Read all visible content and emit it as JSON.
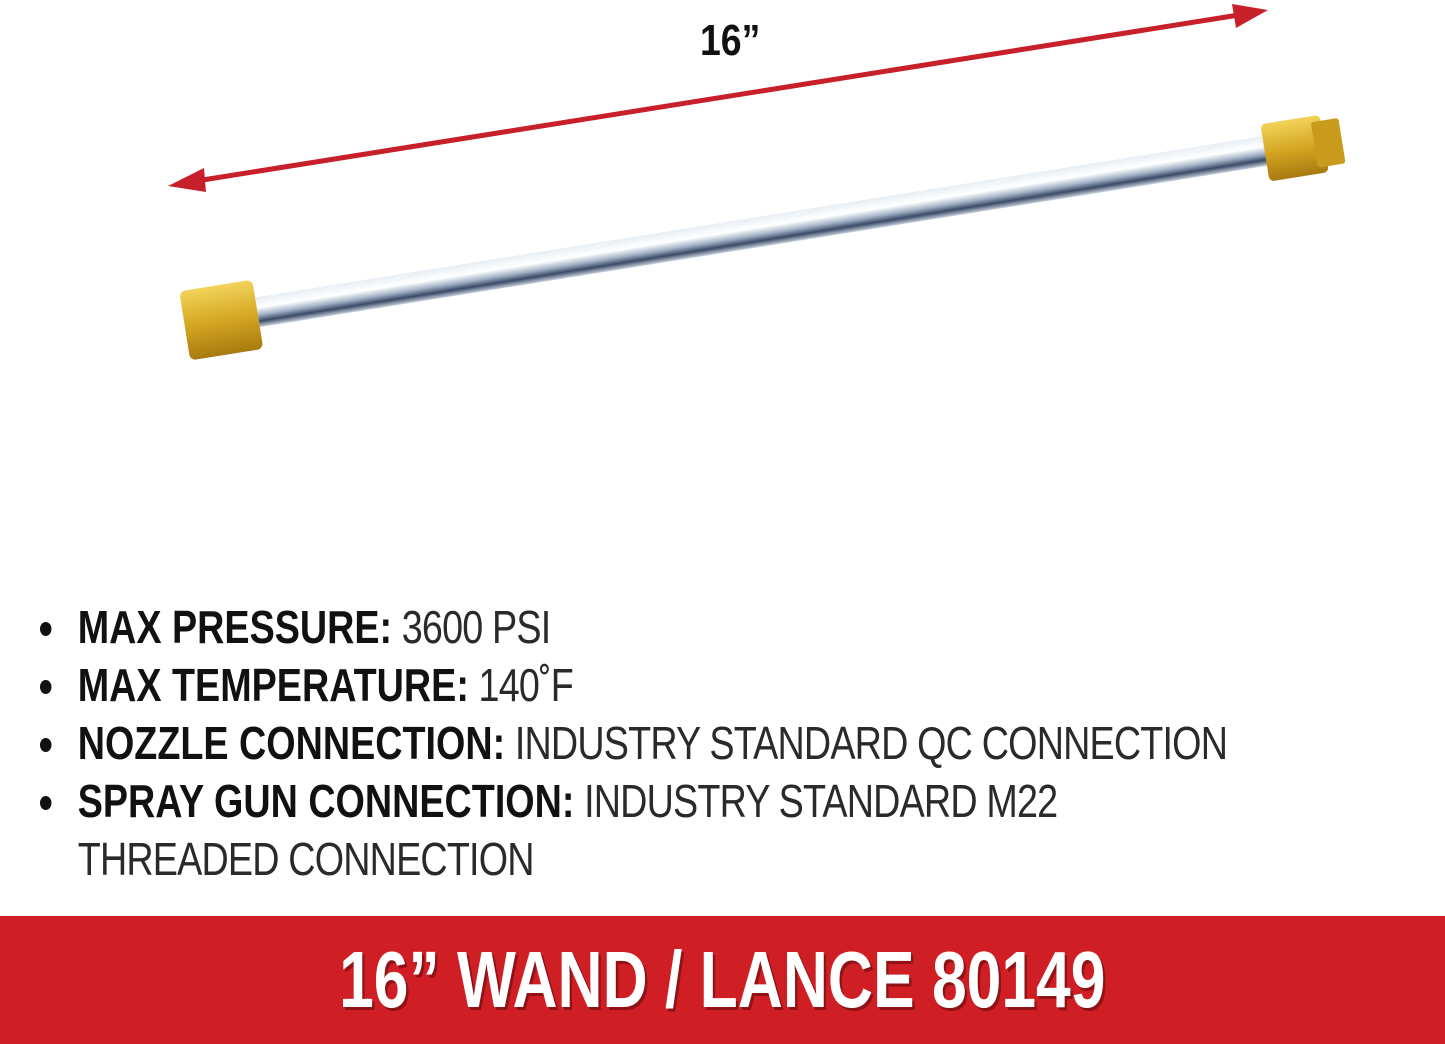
{
  "dimension_label": "16”",
  "colors": {
    "accent_red": "#cf1f24",
    "arrow_red": "#c8202a",
    "brass": "#d9b030",
    "chrome": "#c9d2dc"
  },
  "specs": [
    {
      "label": "MAX PRESSURE:",
      "value": " 3600 PSI"
    },
    {
      "label": "MAX TEMPERATURE:",
      "value": " 140˚F"
    },
    {
      "label": "NOZZLE CONNECTION:",
      "value": " INDUSTRY STANDARD QC CONNECTION"
    },
    {
      "label": "SPRAY GUN CONNECTION:",
      "value": " INDUSTRY STANDARD M22",
      "continuation": "THREADED CONNECTION"
    }
  ],
  "banner": {
    "title": "16” WAND / LANCE 80149"
  }
}
